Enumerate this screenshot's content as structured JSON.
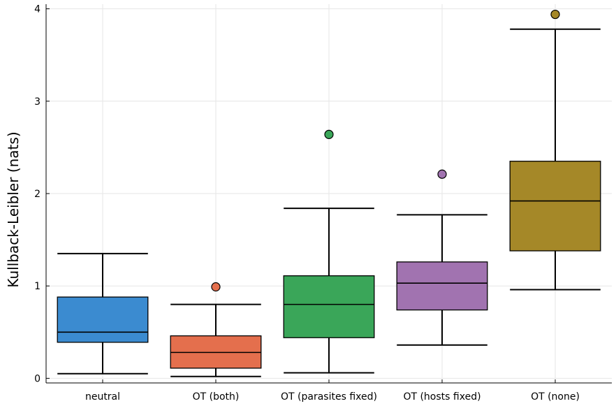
{
  "chart_data": {
    "type": "box",
    "title": "",
    "xlabel": "",
    "ylabel": "Kullback-Leibler (nats)",
    "ylim": [
      -0.05,
      4.05
    ],
    "yticks": [
      0,
      1,
      2,
      3,
      4
    ],
    "grid": true,
    "legend": "none",
    "categories": [
      "neutral",
      "OT (both)",
      "OT (parasites fixed)",
      "OT (hosts fixed)",
      "OT (none)"
    ],
    "boxes": [
      {
        "category": "neutral",
        "color": "#3b8bd0",
        "whisker_low": 0.05,
        "q1": 0.39,
        "median": 0.5,
        "q3": 0.88,
        "whisker_high": 1.35,
        "outliers": []
      },
      {
        "category": "OT (both)",
        "color": "#e46f4d",
        "whisker_low": 0.02,
        "q1": 0.11,
        "median": 0.28,
        "q3": 0.46,
        "whisker_high": 0.8,
        "outliers": [
          0.99
        ]
      },
      {
        "category": "OT (parasites fixed)",
        "color": "#3aa659",
        "whisker_low": 0.06,
        "q1": 0.44,
        "median": 0.8,
        "q3": 1.11,
        "whisker_high": 1.84,
        "outliers": [
          2.64
        ]
      },
      {
        "category": "OT (hosts fixed)",
        "color": "#a173b0",
        "whisker_low": 0.36,
        "q1": 0.74,
        "median": 1.03,
        "q3": 1.26,
        "whisker_high": 1.77,
        "outliers": [
          2.21
        ]
      },
      {
        "category": "OT (none)",
        "color": "#a58828",
        "whisker_low": 0.96,
        "q1": 1.38,
        "median": 1.92,
        "q3": 2.35,
        "whisker_high": 3.78,
        "outliers": [
          3.94
        ]
      }
    ]
  }
}
